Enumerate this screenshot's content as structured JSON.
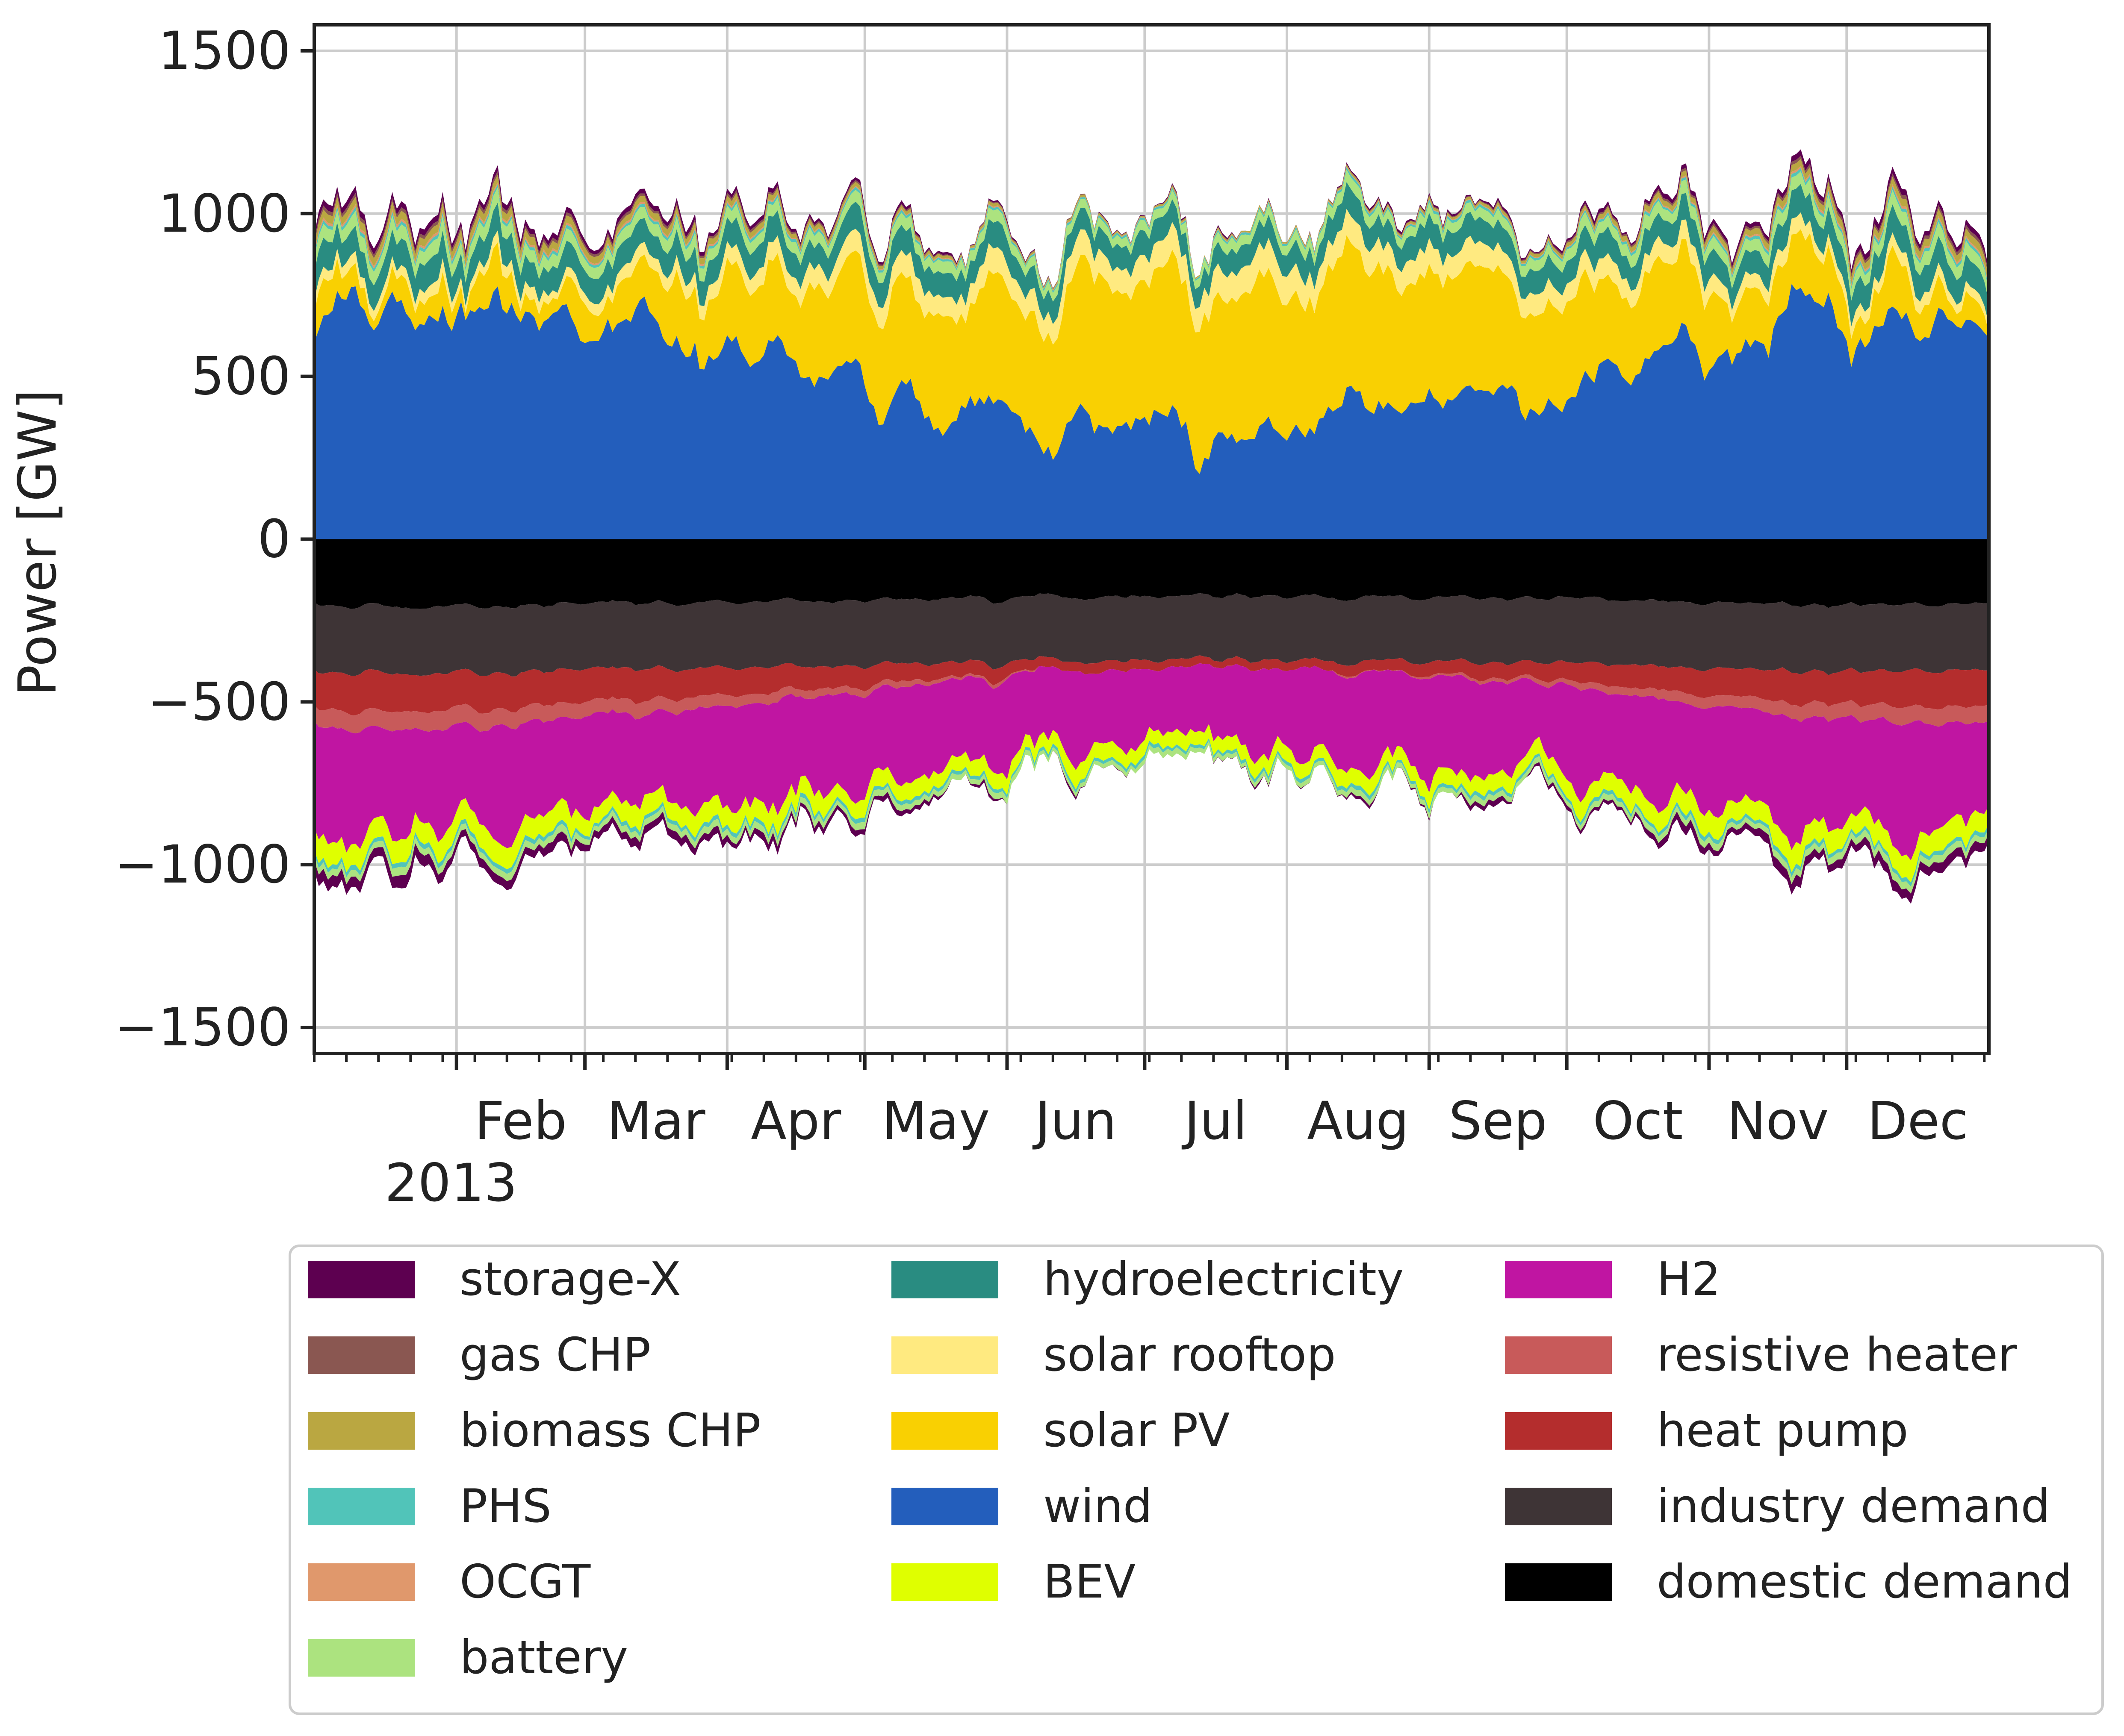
{
  "chart_data": {
    "type": "area",
    "stacked": true,
    "ylabel": "Power [GW]",
    "xlabel": "",
    "year": "2013",
    "ylim": [
      -1580,
      1580
    ],
    "yticks": [
      -1500,
      -1000,
      -500,
      0,
      500,
      1000,
      1500
    ],
    "ytick_labels": [
      "−1500",
      "−1000",
      "−500",
      "0",
      "500",
      "1000",
      "1500"
    ],
    "month_ticks": [
      "Feb",
      "Mar",
      "Apr",
      "May",
      "Jun",
      "Jul",
      "Aug",
      "Sep",
      "Oct",
      "Nov",
      "Dec"
    ],
    "grid": true,
    "legend_placement": "below",
    "positive_series": [
      {
        "name": "wind",
        "color": "#235ebc",
        "base": 520,
        "seasonal_amp": 200,
        "noise": 190
      },
      {
        "name": "solar PV",
        "color": "#f9d002",
        "base": 250,
        "seasonal_amp": -180,
        "noise": 110
      },
      {
        "name": "solar rooftop",
        "color": "#ffea80",
        "base": 55,
        "seasonal_amp": -25,
        "noise": 20
      },
      {
        "name": "hydroelectricity",
        "color": "#298c81",
        "base": 75,
        "seasonal_amp": 5,
        "noise": 18
      },
      {
        "name": "battery",
        "color": "#ace37f",
        "base": 35,
        "seasonal_amp": 5,
        "noise": 12
      },
      {
        "name": "PHS",
        "color": "#51c4b9",
        "base": 8,
        "seasonal_amp": 2,
        "noise": 4
      },
      {
        "name": "OCGT",
        "color": "#e0986c",
        "base": 4,
        "seasonal_amp": 3,
        "noise": 3
      },
      {
        "name": "biomass CHP",
        "color": "#baa741",
        "base": 14,
        "seasonal_amp": 10,
        "noise": 5
      },
      {
        "name": "gas CHP",
        "color": "#8a5751",
        "base": 6,
        "seasonal_amp": 5,
        "noise": 3
      },
      {
        "name": "storage-X",
        "color": "#5d0050",
        "base": 10,
        "seasonal_amp": 8,
        "noise": 8
      }
    ],
    "negative_series": [
      {
        "name": "domestic demand",
        "color": "#000000",
        "base": 190,
        "seasonal_amp": 15,
        "noise": 20
      },
      {
        "name": "industry demand",
        "color": "#3e3436",
        "base": 200,
        "seasonal_amp": 5,
        "noise": 8
      },
      {
        "name": "heat pump",
        "color": "#b42d2d",
        "base": 70,
        "seasonal_amp": 45,
        "noise": 12
      },
      {
        "name": "resistive heater",
        "color": "#c85a5a",
        "base": 25,
        "seasonal_amp": 30,
        "noise": 10
      },
      {
        "name": "H2",
        "color": "#c015a2",
        "base": 280,
        "seasonal_amp": 40,
        "noise": 140
      },
      {
        "name": "BEV",
        "color": "#dfff00",
        "base": 55,
        "seasonal_amp": 10,
        "noise": 20
      },
      {
        "name": "PHS",
        "color": "#51c4b9",
        "base": 12,
        "seasonal_amp": 2,
        "noise": 5
      },
      {
        "name": "battery",
        "color": "#ace37f",
        "base": 18,
        "seasonal_amp": 3,
        "noise": 8
      },
      {
        "name": "storage-X",
        "color": "#5d0050",
        "base": 15,
        "seasonal_amp": 15,
        "noise": 20
      }
    ],
    "legend": [
      [
        {
          "name": "storage-X",
          "color": "#5d0050"
        },
        {
          "name": "gas CHP",
          "color": "#8a5751"
        },
        {
          "name": "biomass CHP",
          "color": "#baa741"
        },
        {
          "name": "PHS",
          "color": "#51c4b9"
        },
        {
          "name": "OCGT",
          "color": "#e0986c"
        },
        {
          "name": "battery",
          "color": "#ace37f"
        }
      ],
      [
        {
          "name": "hydroelectricity",
          "color": "#298c81"
        },
        {
          "name": "solar rooftop",
          "color": "#ffea80"
        },
        {
          "name": "solar PV",
          "color": "#f9d002"
        },
        {
          "name": "wind",
          "color": "#235ebc"
        },
        {
          "name": "BEV",
          "color": "#dfff00"
        }
      ],
      [
        {
          "name": "H2",
          "color": "#c015a2"
        },
        {
          "name": "resistive heater",
          "color": "#c85a5a"
        },
        {
          "name": "heat pump",
          "color": "#b42d2d"
        },
        {
          "name": "industry demand",
          "color": "#3e3436"
        },
        {
          "name": "domestic demand",
          "color": "#000000"
        }
      ]
    ]
  }
}
